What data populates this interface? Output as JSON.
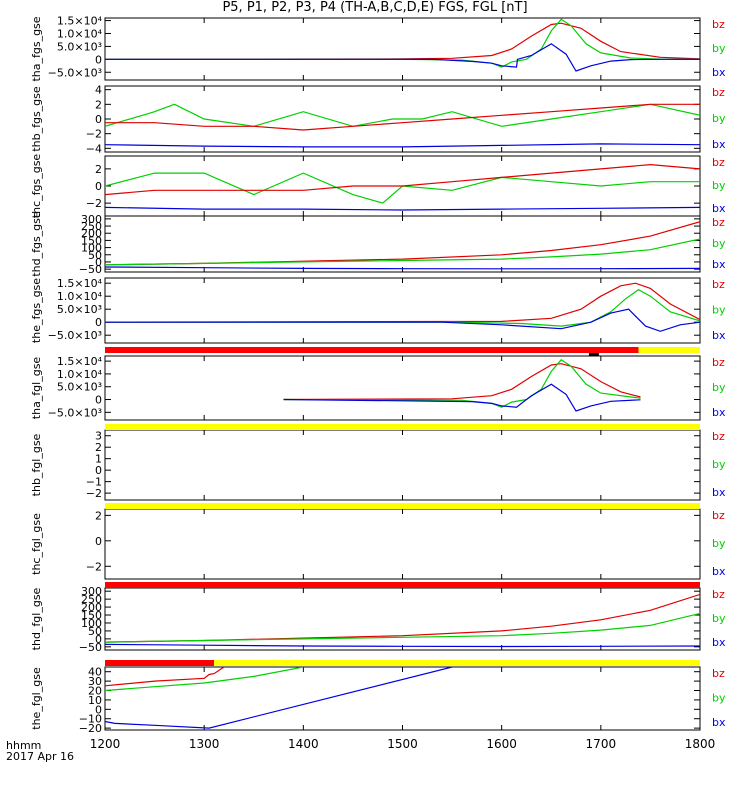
{
  "chart_data": {
    "type": "line",
    "title": "P5, P1, P2, P3, P4 (TH-A,B,C,D,E) FGS, FGL [nT]",
    "x_label_line1": "hhmm",
    "x_label_line2": "2017 Apr 16",
    "x_ticks": [
      "1200",
      "1300",
      "1400",
      "1500",
      "1600",
      "1700",
      "1800"
    ],
    "x_range": [
      1200,
      1800
    ],
    "legend": [
      "bz",
      "by",
      "bx"
    ],
    "colors": {
      "bz": "#e00000",
      "by": "#00d000",
      "bx": "#0000e0",
      "bar_red": "#ff0000",
      "bar_yellow": "#ffff00",
      "bar_black": "#000000"
    },
    "panels": [
      {
        "ylabel": "tha_fgs_gse",
        "ylim": [
          -8000,
          16000
        ],
        "yticks": [
          {
            "v": 15000,
            "t": "1.5×10⁴"
          },
          {
            "v": 10000,
            "t": "1.0×10⁴"
          },
          {
            "v": 5000,
            "t": "5.0×10³"
          },
          {
            "v": 0,
            "t": "0"
          },
          {
            "v": -5000,
            "t": "−5.0×10³"
          }
        ],
        "series": [
          {
            "name": "bz",
            "x": [
              1200,
              1500,
              1550,
              1590,
              1610,
              1630,
              1650,
              1660,
              1680,
              1700,
              1720,
              1760,
              1800
            ],
            "y": [
              0,
              150,
              400,
              1500,
              4000,
              9000,
              13500,
              14000,
              12000,
              7000,
              3000,
              800,
              200
            ]
          },
          {
            "name": "by",
            "x": [
              1200,
              1500,
              1560,
              1590,
              1600,
              1610,
              1625,
              1640,
              1650,
              1660,
              1670,
              1685,
              1700,
              1730,
              1760,
              1800
            ],
            "y": [
              0,
              0,
              -300,
              -1500,
              -3000,
              -1000,
              0,
              4000,
              11000,
              15500,
              13000,
              6000,
              2500,
              500,
              100,
              0
            ]
          },
          {
            "name": "bx",
            "x": [
              1200,
              1530,
              1570,
              1590,
              1600,
              1615,
              1616,
              1630,
              1650,
              1665,
              1675,
              1690,
              1710,
              1730,
              1760,
              1800
            ],
            "y": [
              0,
              0,
              -800,
              -1500,
              -2500,
              -3000,
              0,
              1500,
              6000,
              2000,
              -4500,
              -2500,
              -700,
              -100,
              0,
              0
            ]
          }
        ]
      },
      {
        "ylabel": "thb_fgs_gse",
        "ylim": [
          -4.5,
          4.5
        ],
        "yticks": [
          {
            "v": 4,
            "t": "4"
          },
          {
            "v": 2,
            "t": "2"
          },
          {
            "v": 0,
            "t": "0"
          },
          {
            "v": -2,
            "t": "−2"
          },
          {
            "v": -4,
            "t": "−4"
          }
        ],
        "series": [
          {
            "name": "by",
            "x": [
              1200,
              1250,
              1270,
              1300,
              1350,
              1400,
              1450,
              1490,
              1520,
              1550,
              1600,
              1650,
              1700,
              1750,
              1800
            ],
            "y": [
              -1,
              1,
              2,
              0,
              -1,
              1,
              -1,
              0,
              0,
              1,
              -1,
              0,
              1,
              2,
              0.5
            ]
          },
          {
            "name": "bz",
            "x": [
              1200,
              1250,
              1300,
              1350,
              1400,
              1450,
              1500,
              1550,
              1600,
              1650,
              1700,
              1750,
              1800
            ],
            "y": [
              -0.5,
              -0.5,
              -1,
              -1,
              -1.5,
              -1,
              -0.5,
              0,
              0.5,
              1,
              1.5,
              2,
              2
            ]
          },
          {
            "name": "bx",
            "x": [
              1200,
              1300,
              1400,
              1500,
              1600,
              1700,
              1800
            ],
            "y": [
              -3.5,
              -3.7,
              -3.8,
              -3.8,
              -3.6,
              -3.4,
              -3.5
            ]
          }
        ]
      },
      {
        "ylabel": "thc_fgs_gse",
        "ylim": [
          -3.5,
          3.5
        ],
        "yticks": [
          {
            "v": 2,
            "t": "2"
          },
          {
            "v": 0,
            "t": "0"
          },
          {
            "v": -2,
            "t": "−2"
          }
        ],
        "series": [
          {
            "name": "by",
            "x": [
              1200,
              1250,
              1300,
              1350,
              1400,
              1450,
              1480,
              1500,
              1550,
              1600,
              1650,
              1700,
              1750,
              1800
            ],
            "y": [
              0,
              1.5,
              1.5,
              -1,
              1.5,
              -1,
              -2,
              0,
              -0.5,
              1,
              0.5,
              0,
              0.5,
              0.5
            ]
          },
          {
            "name": "bz",
            "x": [
              1200,
              1250,
              1300,
              1350,
              1400,
              1450,
              1500,
              1550,
              1600,
              1650,
              1700,
              1750,
              1800
            ],
            "y": [
              -1,
              -0.5,
              -0.5,
              -0.5,
              -0.5,
              0,
              0,
              0.5,
              1,
              1.5,
              2,
              2.5,
              2
            ]
          },
          {
            "name": "bx",
            "x": [
              1200,
              1300,
              1400,
              1500,
              1600,
              1700,
              1800
            ],
            "y": [
              -2.5,
              -2.7,
              -2.7,
              -2.8,
              -2.7,
              -2.6,
              -2.5
            ]
          }
        ]
      },
      {
        "ylabel": "thd_fgs_gse",
        "ylim": [
          -70,
          320
        ],
        "yticks": [
          {
            "v": 300,
            "t": "300"
          },
          {
            "v": 250,
            "t": "250"
          },
          {
            "v": 200,
            "t": "200"
          },
          {
            "v": 150,
            "t": "150"
          },
          {
            "v": 100,
            "t": "100"
          },
          {
            "v": 50,
            "t": "50"
          },
          {
            "v": 0,
            "t": "0"
          },
          {
            "v": -50,
            "t": "−50"
          }
        ],
        "series": [
          {
            "name": "bz",
            "x": [
              1200,
              1300,
              1400,
              1500,
              1600,
              1650,
              1700,
              1750,
              1800
            ],
            "y": [
              -20,
              -10,
              5,
              20,
              50,
              80,
              120,
              180,
              280
            ]
          },
          {
            "name": "by",
            "x": [
              1200,
              1300,
              1400,
              1500,
              1600,
              1650,
              1700,
              1750,
              1800
            ],
            "y": [
              -20,
              -10,
              0,
              10,
              20,
              35,
              55,
              85,
              160
            ]
          },
          {
            "name": "bx",
            "x": [
              1200,
              1300,
              1400,
              1500,
              1600,
              1700,
              1800
            ],
            "y": [
              -35,
              -40,
              -45,
              -47,
              -48,
              -47,
              -45
            ]
          }
        ]
      },
      {
        "ylabel": "the_fgs_gse",
        "ylim": [
          -8000,
          17000
        ],
        "yticks": [
          {
            "v": 15000,
            "t": "1.5×10⁴"
          },
          {
            "v": 10000,
            "t": "1.0×10⁴"
          },
          {
            "v": 5000,
            "t": "5.0×10³"
          },
          {
            "v": 0,
            "t": "0"
          },
          {
            "v": -5000,
            "t": "−5.0×10³"
          }
        ],
        "series": [
          {
            "name": "bz",
            "x": [
              1200,
              1600,
              1650,
              1680,
              1700,
              1720,
              1735,
              1750,
              1770,
              1800
            ],
            "y": [
              0,
              300,
              1500,
              5000,
              10000,
              14000,
              15000,
              13000,
              7000,
              1000
            ]
          },
          {
            "name": "by",
            "x": [
              1200,
              1550,
              1620,
              1660,
              1690,
              1710,
              1725,
              1738,
              1750,
              1770,
              1800
            ],
            "y": [
              0,
              0,
              -500,
              -1500,
              0,
              4000,
              9000,
              12500,
              10000,
              4000,
              500
            ]
          },
          {
            "name": "bx",
            "x": [
              1200,
              1540,
              1600,
              1660,
              1690,
              1710,
              1728,
              1745,
              1760,
              1780,
              1800
            ],
            "y": [
              0,
              0,
              -1000,
              -2500,
              0,
              3500,
              5000,
              -1500,
              -3500,
              -1000,
              0
            ]
          }
        ]
      },
      {
        "ylabel": "tha_fgl_gse",
        "ylim": [
          -8000,
          17000
        ],
        "yticks": [
          {
            "v": 15000,
            "t": "1.5×10⁴"
          },
          {
            "v": 10000,
            "t": "1.0×10⁴"
          },
          {
            "v": 5000,
            "t": "5.0×10³"
          },
          {
            "v": 0,
            "t": "0"
          },
          {
            "v": -5000,
            "t": "−5.0×10³"
          }
        ],
        "series": [
          {
            "name": "bz",
            "x": [
              1380,
              1550,
              1590,
              1610,
              1630,
              1650,
              1660,
              1680,
              1700,
              1720,
              1740
            ],
            "y": [
              0,
              300,
              1500,
              4000,
              9000,
              13500,
              14000,
              12000,
              7000,
              3000,
              1000
            ]
          },
          {
            "name": "by",
            "x": [
              1380,
              1560,
              1590,
              1600,
              1610,
              1625,
              1640,
              1650,
              1660,
              1670,
              1685,
              1700,
              1740
            ],
            "y": [
              0,
              -300,
              -1500,
              -3000,
              -1000,
              0,
              4000,
              11000,
              15500,
              13000,
              6000,
              2500,
              500
            ]
          },
          {
            "name": "bx",
            "x": [
              1380,
              1570,
              1590,
              1600,
              1615,
              1630,
              1650,
              1665,
              1675,
              1690,
              1710,
              1740
            ],
            "y": [
              0,
              -800,
              -1500,
              -2500,
              -3000,
              1500,
              6000,
              2000,
              -4500,
              -2500,
              -700,
              -100
            ]
          }
        ]
      },
      {
        "ylabel": "thb_fgl_gse",
        "ylim": [
          -2.6,
          3.5
        ],
        "yticks": [
          {
            "v": 3,
            "t": "3"
          },
          {
            "v": 2,
            "t": "2"
          },
          {
            "v": 1,
            "t": "1"
          },
          {
            "v": 0,
            "t": "0"
          },
          {
            "v": -1,
            "t": "−1"
          },
          {
            "v": -2,
            "t": "−2"
          }
        ],
        "series": []
      },
      {
        "ylabel": "thc_fgl_gse",
        "ylim": [
          -3,
          2.5
        ],
        "yticks": [
          {
            "v": 2,
            "t": "2"
          },
          {
            "v": 0,
            "t": "0"
          },
          {
            "v": -2,
            "t": "−2"
          }
        ],
        "series": []
      },
      {
        "ylabel": "thd_fgl_gse",
        "ylim": [
          -70,
          320
        ],
        "yticks": [
          {
            "v": 300,
            "t": "300"
          },
          {
            "v": 250,
            "t": "250"
          },
          {
            "v": 200,
            "t": "200"
          },
          {
            "v": 150,
            "t": "150"
          },
          {
            "v": 100,
            "t": "100"
          },
          {
            "v": 50,
            "t": "50"
          },
          {
            "v": 0,
            "t": "0"
          },
          {
            "v": -50,
            "t": "−50"
          }
        ],
        "series": [
          {
            "name": "bz",
            "x": [
              1200,
              1300,
              1400,
              1500,
              1600,
              1650,
              1700,
              1750,
              1800
            ],
            "y": [
              -20,
              -10,
              5,
              20,
              50,
              80,
              120,
              180,
              280
            ]
          },
          {
            "name": "by",
            "x": [
              1200,
              1300,
              1400,
              1500,
              1600,
              1650,
              1700,
              1750,
              1800
            ],
            "y": [
              -20,
              -10,
              0,
              10,
              20,
              35,
              55,
              85,
              160
            ]
          },
          {
            "name": "bx",
            "x": [
              1200,
              1300,
              1400,
              1500,
              1600,
              1700,
              1800
            ],
            "y": [
              -35,
              -40,
              -45,
              -47,
              -48,
              -47,
              -45
            ]
          }
        ]
      },
      {
        "ylabel": "the_fgl_gse",
        "ylim": [
          -22,
          45
        ],
        "yticks": [
          {
            "v": 40,
            "t": "40"
          },
          {
            "v": 30,
            "t": "30"
          },
          {
            "v": 20,
            "t": "20"
          },
          {
            "v": 10,
            "t": "10"
          },
          {
            "v": 0,
            "t": "0"
          },
          {
            "v": -10,
            "t": "−10"
          },
          {
            "v": -20,
            "t": "−20"
          }
        ],
        "series": [
          {
            "name": "bz",
            "x": [
              1200,
              1250,
              1300,
              1305,
              1310,
              1320
            ],
            "y": [
              25,
              30,
              33,
              37,
              38,
              45
            ]
          },
          {
            "name": "by",
            "x": [
              1200,
              1250,
              1300,
              1350,
              1400
            ],
            "y": [
              20,
              24,
              28,
              35,
              45
            ]
          },
          {
            "name": "bx",
            "x": [
              1200,
              1210,
              1250,
              1305,
              1550
            ],
            "y": [
              -13,
              -15,
              -17,
              -20,
              45
            ]
          }
        ]
      }
    ],
    "status_bars": [
      {
        "after_panel": 4,
        "segments": [
          {
            "from": 1200,
            "to": 1738,
            "color": "bar_red"
          },
          {
            "from": 1738,
            "to": 1800,
            "color": "bar_yellow"
          }
        ],
        "marker": [
          1688,
          1698
        ]
      },
      {
        "after_panel": 5,
        "segments": [
          {
            "from": 1200,
            "to": 1800,
            "color": "bar_yellow"
          }
        ]
      },
      {
        "after_panel": 6,
        "segments": [
          {
            "from": 1200,
            "to": 1800,
            "color": "bar_yellow"
          }
        ]
      },
      {
        "after_panel": 7,
        "segments": [
          {
            "from": 1200,
            "to": 1800,
            "color": "bar_red"
          }
        ]
      },
      {
        "after_panel": 8,
        "segments": [
          {
            "from": 1200,
            "to": 1310,
            "color": "bar_red"
          },
          {
            "from": 1310,
            "to": 1800,
            "color": "bar_yellow"
          }
        ]
      }
    ]
  }
}
